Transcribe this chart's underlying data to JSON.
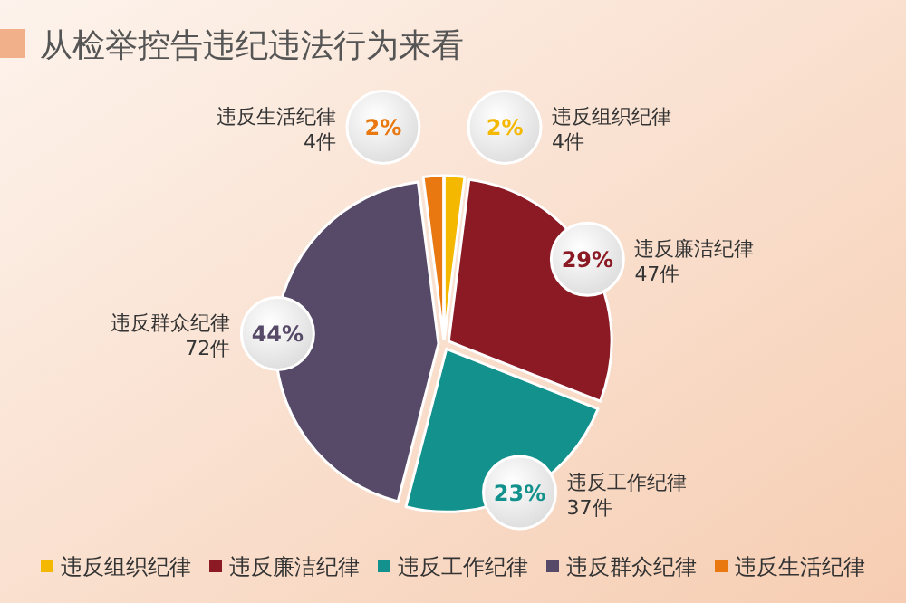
{
  "chart_data": {
    "type": "pie",
    "title": "从检举控告违纪违法行为来看",
    "categories": [
      "违反组织纪律",
      "违反廉洁纪律",
      "违反工作纪律",
      "违反群众纪律",
      "违反生活纪律"
    ],
    "values": [
      2,
      29,
      23,
      44,
      2
    ],
    "colors": [
      "#f5b800",
      "#8b1a24",
      "#13918c",
      "#574a68",
      "#e8780f"
    ],
    "value_labels": [
      "2%",
      "29%",
      "23%",
      "44%",
      "2%"
    ],
    "annotations": [
      "4件",
      "47件",
      "37件",
      "72件",
      "4件"
    ],
    "legend": "bottom"
  }
}
